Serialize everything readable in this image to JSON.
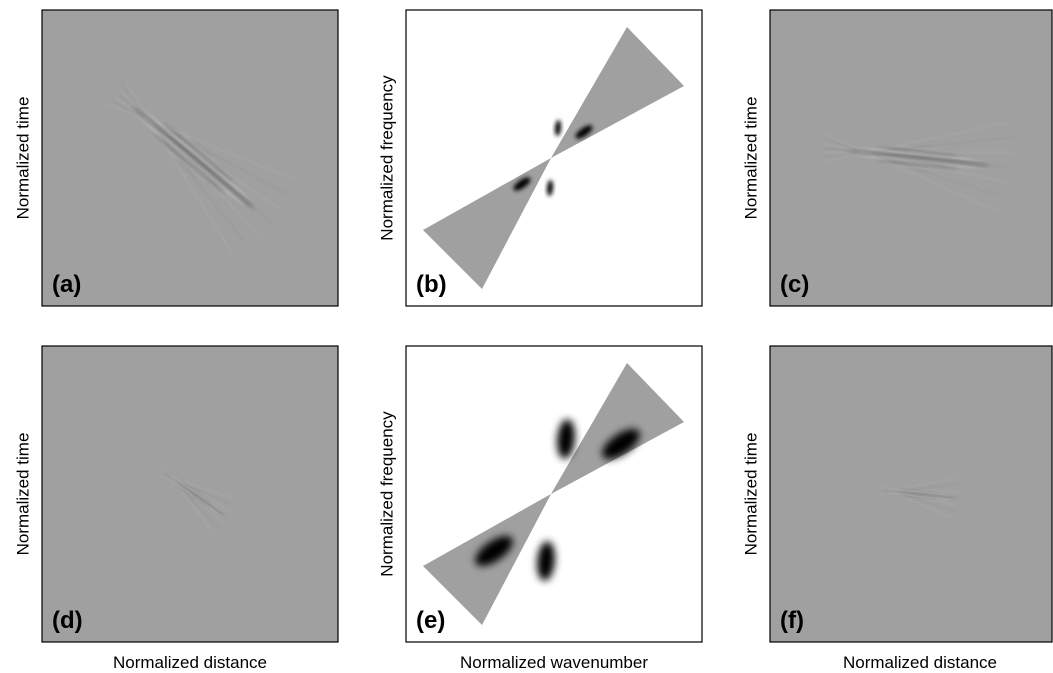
{
  "panels": [
    {
      "label": "(a)",
      "y_label": "Normalized time"
    },
    {
      "label": "(b)",
      "y_label": "Normalized frequency"
    },
    {
      "label": "(c)",
      "y_label": "Normalized time"
    },
    {
      "label": "(d)",
      "y_label": "Normalized time"
    },
    {
      "label": "(e)",
      "y_label": "Normalized frequency"
    },
    {
      "label": "(f)",
      "y_label": "Normalized time"
    }
  ],
  "x_labels": [
    "Normalized distance",
    "Normalized wavenumber",
    "Normalized distance"
  ]
}
